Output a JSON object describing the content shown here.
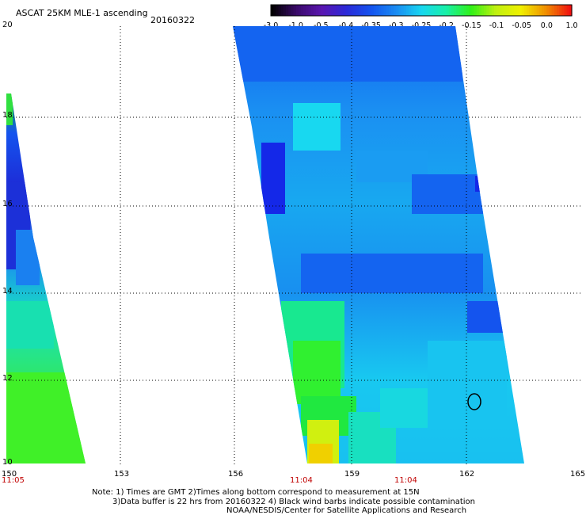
{
  "header": {
    "title": "ASCAT 25KM MLE-1 ascending",
    "date": "20160322"
  },
  "colorbar": {
    "labels": [
      "-3.0",
      "-1.0",
      "-0.5",
      "-0.4",
      "-0.35",
      "-0.3",
      "-0.25",
      "-0.2",
      "-0.15",
      "-0.1",
      "-0.05",
      "0.0",
      "1.0"
    ],
    "colors": [
      "#000000",
      "#3a0a6a",
      "#5a16b0",
      "#2b2ad8",
      "#1454ee",
      "#1a8cf2",
      "#18d6f0",
      "#18f0a8",
      "#30f018",
      "#c0f010",
      "#f0f000",
      "#f09000",
      "#f01010"
    ]
  },
  "axes": {
    "lat_labels": [
      "20",
      "18",
      "16",
      "14",
      "12",
      "10"
    ],
    "lon_labels": [
      "150",
      "153",
      "156",
      "159",
      "162",
      "165"
    ],
    "time_labels": [
      "11:05",
      "11:04",
      "11:04"
    ],
    "time_color": "#c00000"
  },
  "notes": {
    "line1": "Note: 1) Times are GMT 2)Times along bottom correspond to measurement at 15N",
    "line2": "3)Data buffer is 22 hrs from 20160322 4) Black wind barbs indicate possible contamination",
    "line3": "NOAA/NESDIS/Center for Satellite Applications and Research"
  }
}
